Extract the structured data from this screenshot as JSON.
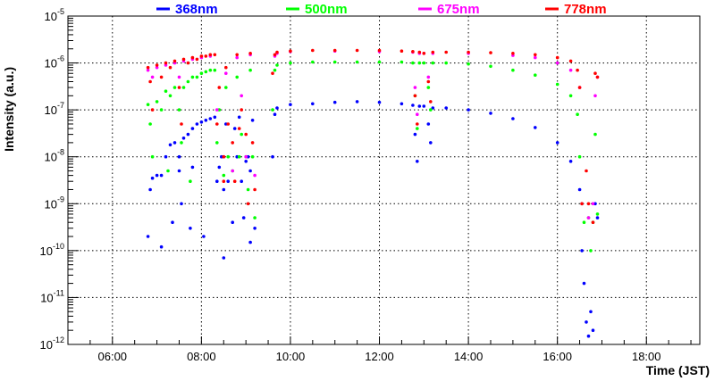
{
  "chart_data": {
    "type": "scatter",
    "title": "",
    "xlabel": "Time (JST)",
    "ylabel": "Intensity (a.u.)",
    "xscale": "linear",
    "yscale": "log",
    "xlim": [
      5.0,
      19.2
    ],
    "ylim": [
      1e-12,
      1e-05
    ],
    "grid": true,
    "x_ticks": [
      {
        "value": 6,
        "label": "06:00"
      },
      {
        "value": 8,
        "label": "08:00"
      },
      {
        "value": 10,
        "label": "10:00"
      },
      {
        "value": 12,
        "label": "12:00"
      },
      {
        "value": 14,
        "label": "14:00"
      },
      {
        "value": 16,
        "label": "16:00"
      },
      {
        "value": 18,
        "label": "18:00"
      }
    ],
    "y_ticks": [
      {
        "value": -12,
        "base": "10",
        "exp": "-12"
      },
      {
        "value": -11,
        "base": "10",
        "exp": "-11"
      },
      {
        "value": -10,
        "base": "10",
        "exp": "-10"
      },
      {
        "value": -9,
        "base": "10",
        "exp": "-9"
      },
      {
        "value": -8,
        "base": "10",
        "exp": "-8"
      },
      {
        "value": -7,
        "base": "10",
        "exp": "-7"
      },
      {
        "value": -6,
        "base": "10",
        "exp": "-6"
      },
      {
        "value": -5,
        "base": "10",
        "exp": "-5"
      }
    ],
    "legend": {
      "placement": "top"
    },
    "series": [
      {
        "name": "368nm",
        "color": "#0000ff",
        "points": [
          [
            6.8,
            2e-10
          ],
          [
            6.85,
            2e-09
          ],
          [
            6.9,
            3.5e-09
          ],
          [
            7.0,
            4e-09
          ],
          [
            7.1,
            1.2e-10
          ],
          [
            7.1,
            4e-09
          ],
          [
            7.2,
            1e-08
          ],
          [
            7.3,
            1.8e-08
          ],
          [
            7.35,
            4e-10
          ],
          [
            7.4,
            2e-08
          ],
          [
            7.5,
            1e-08
          ],
          [
            7.5,
            5e-09
          ],
          [
            7.55,
            1e-09
          ],
          [
            7.6,
            2.5e-08
          ],
          [
            7.7,
            3e-08
          ],
          [
            7.75,
            3e-10
          ],
          [
            7.8,
            4e-08
          ],
          [
            7.8,
            6e-09
          ],
          [
            7.9,
            5e-08
          ],
          [
            8.0,
            5.5e-08
          ],
          [
            8.05,
            2e-10
          ],
          [
            8.1,
            6e-08
          ],
          [
            8.2,
            6.5e-08
          ],
          [
            8.3,
            7e-08
          ],
          [
            8.35,
            3e-09
          ],
          [
            8.4,
            6e-09
          ],
          [
            8.45,
            1e-08
          ],
          [
            8.5,
            2e-09
          ],
          [
            8.5,
            7e-11
          ],
          [
            8.55,
            5e-08
          ],
          [
            8.6,
            3e-09
          ],
          [
            8.7,
            4e-10
          ],
          [
            8.75,
            4e-08
          ],
          [
            8.8,
            1e-08
          ],
          [
            8.85,
            7e-08
          ],
          [
            8.9,
            3e-09
          ],
          [
            8.95,
            5e-10
          ],
          [
            9.0,
            8e-09
          ],
          [
            9.05,
            1e-08
          ],
          [
            9.1,
            1.5e-10
          ],
          [
            9.1,
            5e-09
          ],
          [
            9.15,
            6e-08
          ],
          [
            9.2,
            3e-10
          ],
          [
            9.6,
            1e-08
          ],
          [
            9.65,
            8e-08
          ],
          [
            9.7,
            1.1e-07
          ],
          [
            10.0,
            1.3e-07
          ],
          [
            10.5,
            1.35e-07
          ],
          [
            11.0,
            1.45e-07
          ],
          [
            11.5,
            1.5e-07
          ],
          [
            12.0,
            1.45e-07
          ],
          [
            12.5,
            1.35e-07
          ],
          [
            12.75,
            1.25e-07
          ],
          [
            12.8,
            3e-08
          ],
          [
            12.85,
            8e-09
          ],
          [
            12.9,
            1.2e-07
          ],
          [
            13.0,
            1.2e-07
          ],
          [
            13.1,
            5e-08
          ],
          [
            13.15,
            2e-08
          ],
          [
            13.2,
            1.1e-07
          ],
          [
            13.5,
            1.1e-07
          ],
          [
            14.0,
            1e-07
          ],
          [
            14.5,
            8.5e-08
          ],
          [
            15.0,
            6.5e-08
          ],
          [
            15.5,
            4.2e-08
          ],
          [
            16.0,
            2e-08
          ],
          [
            16.3,
            8e-09
          ],
          [
            16.5,
            2e-09
          ],
          [
            16.55,
            1e-10
          ],
          [
            16.6,
            2e-11
          ],
          [
            16.65,
            3e-12
          ],
          [
            16.7,
            1.5e-12
          ],
          [
            16.75,
            5e-12
          ],
          [
            16.8,
            2e-12
          ],
          [
            16.85,
            1e-09
          ],
          [
            16.9,
            5e-10
          ]
        ]
      },
      {
        "name": "500nm",
        "color": "#00ff00",
        "points": [
          [
            6.8,
            1.3e-07
          ],
          [
            6.85,
            5e-08
          ],
          [
            6.9,
            1e-08
          ],
          [
            7.0,
            1.5e-07
          ],
          [
            7.1,
            1e-07
          ],
          [
            7.2,
            2.5e-07
          ],
          [
            7.25,
            5e-09
          ],
          [
            7.3,
            2e-07
          ],
          [
            7.4,
            3e-07
          ],
          [
            7.5,
            1e-07
          ],
          [
            7.55,
            2e-08
          ],
          [
            7.6,
            3e-07
          ],
          [
            7.7,
            4e-07
          ],
          [
            7.75,
            3e-09
          ],
          [
            7.8,
            5e-07
          ],
          [
            7.9,
            5e-07
          ],
          [
            8.0,
            6e-07
          ],
          [
            8.1,
            6.5e-07
          ],
          [
            8.2,
            7e-07
          ],
          [
            8.3,
            7e-07
          ],
          [
            8.35,
            2e-08
          ],
          [
            8.4,
            1e-07
          ],
          [
            8.5,
            4e-09
          ],
          [
            8.55,
            3e-07
          ],
          [
            8.6,
            1e-08
          ],
          [
            8.7,
            5e-09
          ],
          [
            8.8,
            5e-07
          ],
          [
            8.85,
            1e-08
          ],
          [
            8.9,
            3e-08
          ],
          [
            9.0,
            1e-08
          ],
          [
            9.05,
            2e-09
          ],
          [
            9.1,
            7e-07
          ],
          [
            9.15,
            1e-08
          ],
          [
            9.2,
            5e-10
          ],
          [
            9.6,
            1e-07
          ],
          [
            9.65,
            7e-07
          ],
          [
            9.7,
            9e-07
          ],
          [
            10.0,
            1e-06
          ],
          [
            10.5,
            1.05e-06
          ],
          [
            11.0,
            1.05e-06
          ],
          [
            11.5,
            1.05e-06
          ],
          [
            12.0,
            1.05e-06
          ],
          [
            12.5,
            1.05e-06
          ],
          [
            12.75,
            1e-06
          ],
          [
            12.8,
            2e-07
          ],
          [
            12.85,
            4e-08
          ],
          [
            12.9,
            1e-06
          ],
          [
            13.0,
            1e-06
          ],
          [
            13.1,
            3e-07
          ],
          [
            13.15,
            1e-07
          ],
          [
            13.2,
            1e-06
          ],
          [
            13.5,
            1e-06
          ],
          [
            14.0,
            9.5e-07
          ],
          [
            14.5,
            8.5e-07
          ],
          [
            15.0,
            7e-07
          ],
          [
            15.5,
            5.5e-07
          ],
          [
            16.0,
            3.5e-07
          ],
          [
            16.3,
            2e-07
          ],
          [
            16.45,
            8e-08
          ],
          [
            16.5,
            1e-08
          ],
          [
            16.55,
            1e-09
          ],
          [
            16.6,
            4e-10
          ],
          [
            16.7,
            5e-10
          ],
          [
            16.75,
            1e-10
          ],
          [
            16.8,
            4e-10
          ],
          [
            16.85,
            3e-08
          ],
          [
            16.9,
            6e-10
          ]
        ]
      },
      {
        "name": "675nm",
        "color": "#ff00ff",
        "points": [
          [
            6.8,
            7e-07
          ],
          [
            6.9,
            5e-07
          ],
          [
            7.0,
            8e-07
          ],
          [
            7.2,
            9e-07
          ],
          [
            7.4,
            1e-06
          ],
          [
            7.5,
            5e-07
          ],
          [
            7.6,
            1.1e-06
          ],
          [
            7.8,
            1.2e-06
          ],
          [
            8.0,
            1.3e-06
          ],
          [
            8.2,
            1.4e-06
          ],
          [
            8.35,
            1e-07
          ],
          [
            8.5,
            1e-08
          ],
          [
            8.55,
            6e-07
          ],
          [
            8.7,
            5e-09
          ],
          [
            8.8,
            1.3e-06
          ],
          [
            8.9,
            2e-07
          ],
          [
            9.0,
            1e-08
          ],
          [
            9.1,
            1.5e-06
          ],
          [
            9.2,
            4e-09
          ],
          [
            9.65,
            1.4e-06
          ],
          [
            9.7,
            1.6e-06
          ],
          [
            10.0,
            1.75e-06
          ],
          [
            11.0,
            1.8e-06
          ],
          [
            12.0,
            1.75e-06
          ],
          [
            12.75,
            1.7e-06
          ],
          [
            12.8,
            3e-07
          ],
          [
            12.85,
            8e-08
          ],
          [
            12.9,
            1.6e-06
          ],
          [
            13.0,
            1.6e-06
          ],
          [
            13.1,
            5e-07
          ],
          [
            13.2,
            1.6e-06
          ],
          [
            14.0,
            1.6e-06
          ],
          [
            15.0,
            1.45e-06
          ],
          [
            15.5,
            1.3e-06
          ],
          [
            16.0,
            1e-06
          ],
          [
            16.3,
            7e-07
          ],
          [
            16.5,
            3e-07
          ],
          [
            16.55,
            1e-09
          ],
          [
            16.7,
            5e-10
          ],
          [
            16.8,
            1e-09
          ],
          [
            16.85,
            2e-07
          ],
          [
            16.9,
            5e-07
          ]
        ]
      },
      {
        "name": "778nm",
        "color": "#ff0000",
        "points": [
          [
            6.8,
            8e-07
          ],
          [
            6.85,
            4e-07
          ],
          [
            6.9,
            1e-07
          ],
          [
            7.0,
            9e-07
          ],
          [
            7.1,
            5e-07
          ],
          [
            7.2,
            1e-06
          ],
          [
            7.3,
            8e-07
          ],
          [
            7.4,
            1.1e-06
          ],
          [
            7.5,
            3e-07
          ],
          [
            7.55,
            5e-08
          ],
          [
            7.6,
            1.2e-06
          ],
          [
            7.7,
            1e-06
          ],
          [
            7.8,
            1.3e-06
          ],
          [
            7.9,
            1.2e-06
          ],
          [
            8.0,
            1.4e-06
          ],
          [
            8.1,
            1.4e-06
          ],
          [
            8.2,
            1.5e-06
          ],
          [
            8.3,
            1.5e-06
          ],
          [
            8.35,
            5e-08
          ],
          [
            8.4,
            3e-07
          ],
          [
            8.5,
            1e-08
          ],
          [
            8.5,
            3e-09
          ],
          [
            8.55,
            8e-07
          ],
          [
            8.6,
            5e-08
          ],
          [
            8.7,
            2e-08
          ],
          [
            8.75,
            3e-09
          ],
          [
            8.8,
            1.5e-06
          ],
          [
            8.85,
            4e-08
          ],
          [
            8.9,
            1e-07
          ],
          [
            9.0,
            3e-08
          ],
          [
            9.05,
            1e-09
          ],
          [
            9.1,
            1.6e-06
          ],
          [
            9.15,
            2e-08
          ],
          [
            9.2,
            2e-09
          ],
          [
            9.6,
            6e-07
          ],
          [
            9.65,
            1.5e-06
          ],
          [
            9.7,
            1.7e-06
          ],
          [
            10.0,
            1.8e-06
          ],
          [
            10.5,
            1.85e-06
          ],
          [
            11.0,
            1.85e-06
          ],
          [
            11.5,
            1.85e-06
          ],
          [
            12.0,
            1.85e-06
          ],
          [
            12.5,
            1.8e-06
          ],
          [
            12.75,
            1.75e-06
          ],
          [
            12.8,
            2e-07
          ],
          [
            12.85,
            5e-08
          ],
          [
            12.9,
            1.7e-06
          ],
          [
            13.0,
            1.6e-06
          ],
          [
            13.1,
            4e-07
          ],
          [
            13.15,
            1.5e-07
          ],
          [
            13.2,
            1.7e-06
          ],
          [
            13.5,
            1.7e-06
          ],
          [
            14.0,
            1.7e-06
          ],
          [
            14.5,
            1.65e-06
          ],
          [
            15.0,
            1.6e-06
          ],
          [
            15.5,
            1.5e-06
          ],
          [
            16.0,
            1.3e-06
          ],
          [
            16.3,
            1.1e-06
          ],
          [
            16.45,
            7e-07
          ],
          [
            16.5,
            3e-07
          ],
          [
            16.55,
            1e-09
          ],
          [
            16.65,
            5e-09
          ],
          [
            16.7,
            1e-09
          ],
          [
            16.8,
            4e-10
          ],
          [
            16.85,
            6e-07
          ],
          [
            16.9,
            5e-07
          ]
        ]
      }
    ]
  }
}
